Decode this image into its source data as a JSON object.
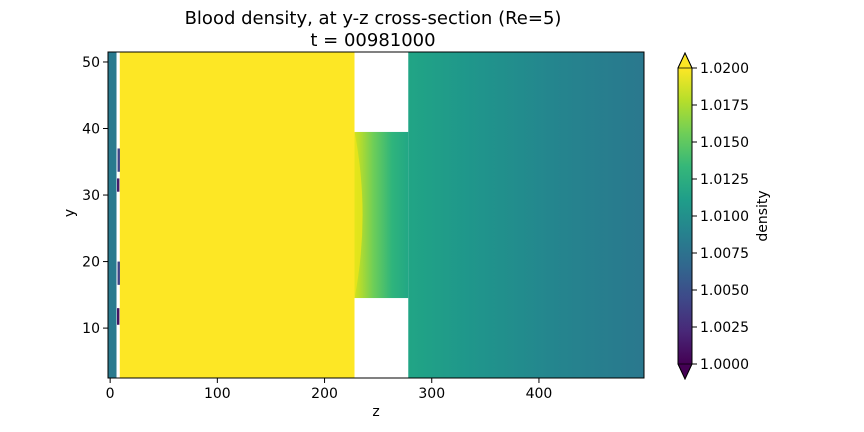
{
  "chart_data": {
    "type": "heatmap",
    "title": "Blood density, at y-z cross-section (Re=5)",
    "subtitle": "t = 00981000",
    "xlabel": "z",
    "ylabel": "y",
    "xlim": [
      -2,
      498
    ],
    "ylim": [
      2.5,
      51.5
    ],
    "xticks": [
      0,
      100,
      200,
      300,
      400
    ],
    "yticks": [
      10,
      20,
      30,
      40,
      50
    ],
    "colorbar": {
      "label": "density",
      "colormap": "viridis",
      "vmin": 1.0,
      "vmax": 1.02,
      "extend": "both",
      "ticks": [
        "1.0200",
        "1.0175",
        "1.0150",
        "1.0125",
        "1.0100",
        "1.0075",
        "1.0050",
        "1.0025",
        "1.0000"
      ]
    },
    "regions": [
      {
        "name": "left-wall",
        "z": [
          -2,
          6
        ],
        "y": [
          2.5,
          51.5
        ],
        "density": 1.0082
      },
      {
        "name": "gap",
        "z": [
          6,
          9
        ],
        "y": [
          2.5,
          51.5
        ],
        "density": null
      },
      {
        "name": "yellow-block",
        "z": [
          9,
          228
        ],
        "y": [
          2.5,
          51.5
        ],
        "density": 1.02
      },
      {
        "name": "constriction-gradient",
        "z": [
          228,
          278
        ],
        "y": [
          14.5,
          39.5
        ],
        "density_start": 1.018,
        "density_end": 1.011
      },
      {
        "name": "downstream-region",
        "z": [
          278,
          498
        ],
        "y": [
          2.5,
          51.5
        ],
        "density_start": 1.011,
        "density_end": 1.0087
      }
    ],
    "defects": [
      {
        "z": 7.5,
        "y": [
          10.5,
          13
        ],
        "density": 1.001
      },
      {
        "z": 8,
        "y": [
          16.5,
          20
        ],
        "density": 1.004
      },
      {
        "z": 7.5,
        "y": [
          30.5,
          32.5
        ],
        "density": 1.0015
      },
      {
        "z": 8,
        "y": [
          33.5,
          37
        ],
        "density": 1.004
      }
    ]
  }
}
